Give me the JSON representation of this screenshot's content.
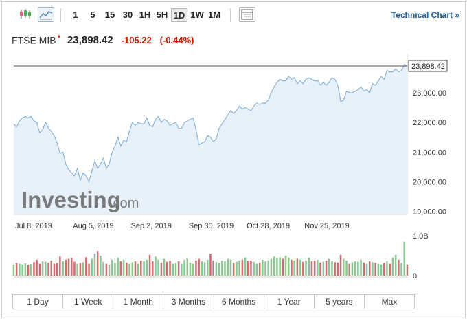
{
  "toolbar": {
    "intervals": [
      "1",
      "5",
      "15",
      "30",
      "1H",
      "5H",
      "1D",
      "1W",
      "1M"
    ],
    "active_interval": "1D",
    "tech_chart_label": "Technical Chart »"
  },
  "quote": {
    "name": "FTSE MIB",
    "price": "23,898.42",
    "change": "-105.22",
    "change_pct": "(-0.44%)"
  },
  "watermark": {
    "brand": "Investing",
    "suffix": ".com"
  },
  "colors": {
    "line": "#88b4dc",
    "area": "#e8f1f9",
    "up_volume": "#88c991",
    "down_volume": "#d9686b",
    "last_price_line": "#555555",
    "negative": "#d91400",
    "link": "#1a5a96"
  },
  "ranges": [
    "1 Day",
    "1 Week",
    "1 Month",
    "3 Months",
    "6 Months",
    "1 Year",
    "5 years",
    "Max"
  ],
  "chart_data": {
    "type": "area",
    "price_axis": {
      "ticks": [
        19000,
        20000,
        21000,
        22000,
        23000
      ],
      "tick_labels": [
        "19,000.00",
        "20,000.00",
        "21,000.00",
        "22,000.00",
        "23,000.00"
      ],
      "range": [
        18900,
        24200
      ],
      "last_label": "23,898.42",
      "last_value": 23898.42
    },
    "x_axis": {
      "tick_labels": [
        "Jul 8, 2019",
        "Aug 5, 2019",
        "Sep 2, 2019",
        "Sep 30, 2019",
        "Oct 28, 2019",
        "Nov 25, 2019"
      ],
      "tick_index": [
        0,
        20,
        40,
        60,
        80,
        100
      ]
    },
    "volume_axis": {
      "labels": [
        "1.0B",
        "0"
      ],
      "range": [
        0,
        1000000000
      ]
    },
    "series": [
      {
        "values": [
          21950,
          21850,
          22050,
          22150,
          22200,
          22150,
          22200,
          22050,
          22000,
          21650,
          21750,
          22000,
          21800,
          21700,
          21550,
          21300,
          20950,
          21000,
          20600,
          20400,
          20300,
          20200,
          20450,
          20050,
          20300,
          20200,
          20000,
          20350,
          20700,
          20450,
          20600,
          20800,
          20450,
          20600,
          21000,
          21200,
          21500,
          21200,
          21400,
          21350,
          21700,
          22000,
          21900,
          22000,
          21950,
          21950,
          22150,
          21900,
          21850,
          22100,
          22200,
          22000,
          22100,
          22050,
          21900,
          21950,
          22000,
          21800,
          21800,
          22000,
          22050,
          22100,
          22150,
          21750,
          21250,
          21300,
          21350,
          21550,
          21500,
          21350,
          21450,
          21800,
          21950,
          22100,
          22250,
          22400,
          22300,
          22400,
          22550,
          22450,
          22500,
          22450,
          22400,
          22550,
          22650,
          22600,
          22650,
          22650,
          22750,
          23000,
          23200,
          23350,
          23450,
          23400,
          23400,
          23550,
          23450,
          23500,
          23300,
          23400,
          23300,
          23450,
          23500,
          23450,
          23400,
          23400,
          23250,
          23350,
          23250,
          23350,
          23500,
          23450,
          23250,
          22700,
          22750,
          23050,
          23000,
          23000,
          23050,
          23100,
          23200,
          23050,
          23100,
          23000,
          23300,
          23250,
          23400,
          23550,
          23450,
          23750,
          23700,
          23700,
          23800,
          23700,
          23750,
          23950,
          23898.42
        ],
        "volumes": [
          0.28,
          0.32,
          0.3,
          0.28,
          0.31,
          0.27,
          0.29,
          0.34,
          0.4,
          0.3,
          0.36,
          0.35,
          0.33,
          0.38,
          0.3,
          0.32,
          0.48,
          0.36,
          0.4,
          0.42,
          0.44,
          0.35,
          0.3,
          0.32,
          0.34,
          0.46,
          0.3,
          0.42,
          0.55,
          0.62,
          0.5,
          0.35,
          0.3,
          0.28,
          0.4,
          0.32,
          0.45,
          0.36,
          0.4,
          0.33,
          0.3,
          0.34,
          0.36,
          0.3,
          0.38,
          0.36,
          0.4,
          0.52,
          0.36,
          0.48,
          0.4,
          0.33,
          0.42,
          0.35,
          0.37,
          0.3,
          0.32,
          0.36,
          0.3,
          0.4,
          0.42,
          0.33,
          0.3,
          0.38,
          0.42,
          0.36,
          0.34,
          0.4,
          0.55,
          0.38,
          0.34,
          0.32,
          0.38,
          0.36,
          0.42,
          0.4,
          0.33,
          0.35,
          0.38,
          0.4,
          0.45,
          0.36,
          0.38,
          0.35,
          0.3,
          0.33,
          0.4,
          0.36,
          0.38,
          0.42,
          0.48,
          0.44,
          0.46,
          0.42,
          0.5,
          0.45,
          0.4,
          0.38,
          0.42,
          0.4,
          0.35,
          0.38,
          0.45,
          0.36,
          0.37,
          0.4,
          0.33,
          0.35,
          0.38,
          0.42,
          0.36,
          0.34,
          0.33,
          0.52,
          0.42,
          0.38,
          0.3,
          0.34,
          0.36,
          0.35,
          0.4,
          0.33,
          0.3,
          0.36,
          0.34,
          0.32,
          0.3,
          0.28,
          0.32,
          0.36,
          0.3,
          0.45,
          0.52,
          0.4,
          0.32,
          0.85,
          0.28
        ],
        "volume_unit": "B"
      }
    ]
  }
}
